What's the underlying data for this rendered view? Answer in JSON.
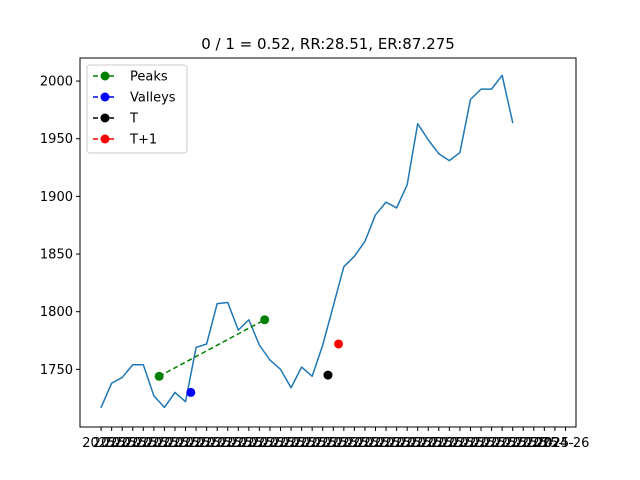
{
  "chart_data": {
    "type": "line",
    "title": "0 / 1 = 0.52, RR:28.51, ER:87.275",
    "xlabel": "",
    "ylabel": "",
    "ylim": [
      1700,
      2020
    ],
    "yticks": [
      1750,
      1800,
      1850,
      1900,
      1950,
      2000
    ],
    "x_tick_labels_visible": [
      "2025-",
      "2025-",
      "2025-",
      "2025-",
      "2025-",
      "2025-",
      "2025-",
      "2025-",
      "2025-",
      "2025-",
      "2025-",
      "2025-",
      "2025-",
      "2025-",
      "2025-",
      "2025-",
      "2025-",
      "2025-",
      "2025-",
      "2025-",
      "2025-",
      "2025-",
      "2025-",
      "2025-",
      "2025-",
      "2025-",
      "2025-",
      "2025-",
      "2025-",
      "2025-",
      "2025-",
      "2025-",
      "2025-",
      "2025-",
      "2025-",
      "2025-",
      "2025-",
      "2025-",
      "2025-",
      "2025-",
      "2025-",
      "2025-",
      "2025-",
      "2025-",
      "2024-26"
    ],
    "grid": false,
    "legend_position": "top-left",
    "series": [
      {
        "color": "#1f77b4",
        "x": [
          0,
          1,
          2,
          3,
          4,
          5,
          6,
          7,
          8,
          9,
          10,
          11,
          12,
          13,
          14,
          15,
          16,
          17,
          18,
          19,
          20,
          21,
          22,
          23,
          24,
          25,
          26,
          27,
          28,
          29,
          30,
          31,
          32,
          33,
          34,
          35,
          36,
          37,
          38,
          39,
          40,
          41,
          42,
          43,
          44
        ],
        "values": [
          1717,
          1738,
          1743,
          1754,
          1754,
          1727,
          1717,
          1730,
          1722,
          1769,
          1772,
          1807,
          1808,
          1784,
          1793,
          1771,
          1758,
          1750,
          1734,
          1752,
          1744,
          1771,
          1805,
          1839,
          1848,
          1861,
          1884,
          1895,
          1890,
          1910,
          1963,
          1949,
          1937,
          1931,
          1938,
          1984,
          1993,
          1993,
          2005,
          1964,
          null,
          null,
          null,
          null,
          null
        ]
      }
    ],
    "markers": [
      {
        "name": "Peaks",
        "color": "#008000",
        "linestyle": "dashed",
        "points": [
          {
            "x": 5.5,
            "y": 1744
          },
          {
            "x": 15.5,
            "y": 1793
          }
        ]
      },
      {
        "name": "Valleys",
        "color": "#0000ff",
        "linestyle": "dashed",
        "points": [
          {
            "x": 8.5,
            "y": 1730
          }
        ]
      },
      {
        "name": "T",
        "color": "#000000",
        "linestyle": "dashed",
        "points": [
          {
            "x": 21.5,
            "y": 1745
          }
        ]
      },
      {
        "name": "T+1",
        "color": "#ff0000",
        "linestyle": "dashed",
        "points": [
          {
            "x": 22.5,
            "y": 1772
          }
        ]
      }
    ],
    "x_range": [
      -2,
      45
    ]
  }
}
